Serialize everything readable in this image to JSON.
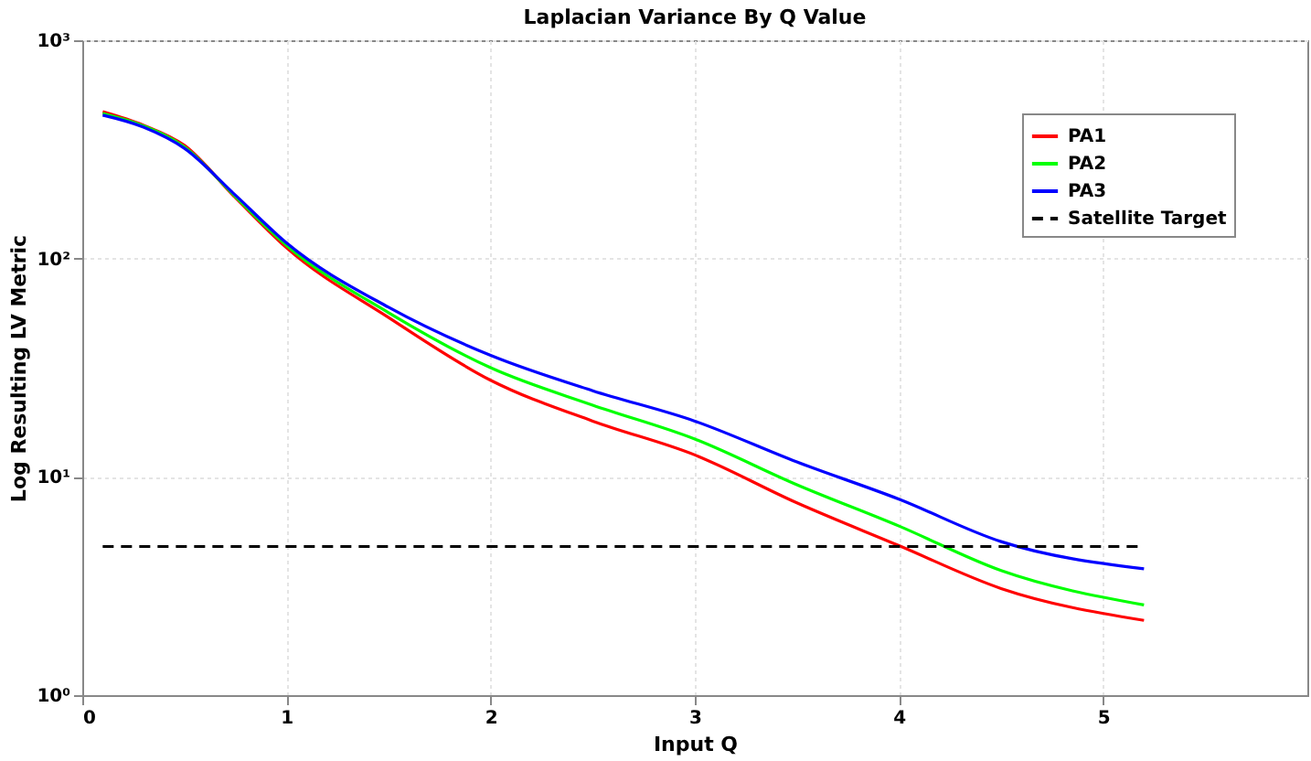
{
  "chart_data": {
    "type": "line",
    "title": "Laplacian Variance By Q Value",
    "xlabel": "Input Q",
    "ylabel": "Log Resulting LV Metric",
    "x": [
      0.1,
      0.3,
      0.5,
      0.75,
      1,
      1.5,
      2,
      2.5,
      3,
      3.5,
      4,
      4.5,
      5.2
    ],
    "series": [
      {
        "name": "PA1",
        "color": "#ff0000",
        "values": [
          471,
          408,
          330,
          190,
          112,
          53.7,
          27.7,
          18,
          12.6,
          7.6,
          4.84,
          3.08,
          2.2
        ]
      },
      {
        "name": "PA2",
        "color": "#00ff00",
        "values": [
          462,
          405,
          325,
          192,
          115,
          56.5,
          31.6,
          21.3,
          14.9,
          9.2,
          5.95,
          3.72,
          2.59
        ]
      },
      {
        "name": "PA3",
        "color": "#0000ff",
        "values": [
          454,
          400,
          320,
          195,
          118,
          59.8,
          36,
          24.8,
          18,
          11.7,
          7.9,
          5.05,
          3.79
        ]
      }
    ],
    "ref_lines": [
      {
        "axis": "y",
        "value": 4.8,
        "label": "Satellite Target",
        "color": "#000000",
        "line_style": "dashed"
      }
    ],
    "xlim": [
      0,
      6
    ],
    "xticks": [
      0,
      1,
      2,
      3,
      4,
      5
    ],
    "ylim": [
      1,
      1000
    ],
    "yticks": [
      {
        "value": 1,
        "label": "10⁰"
      },
      {
        "value": 10,
        "label": "10¹"
      },
      {
        "value": 100,
        "label": "10²"
      },
      {
        "value": 1000,
        "label": "10³"
      }
    ],
    "log": "y",
    "grid": true,
    "legend": "top right",
    "line_style": "solid",
    "marker": "none"
  }
}
